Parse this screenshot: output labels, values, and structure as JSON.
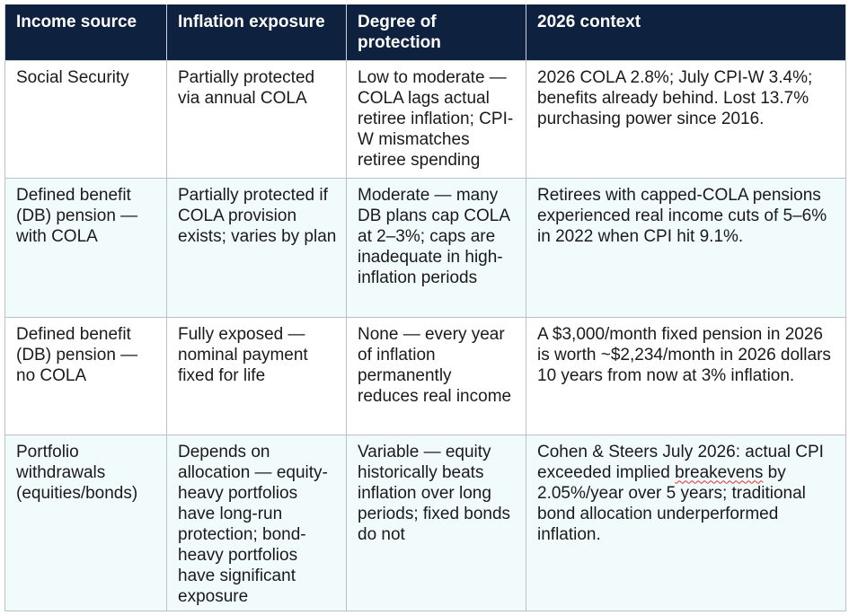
{
  "table": {
    "headers": [
      "Income source",
      "Inflation exposure",
      "Degree of protection",
      "2026 context"
    ],
    "rows": [
      {
        "source": "Social Security",
        "exposure": "Partially protected via annual COLA",
        "protection": "Low to moderate — COLA lags actual retiree inflation; CPI-W mismatches retiree spending",
        "context": "2026 COLA 2.8%; July CPI-W 3.4%; benefits already behind. Lost 13.7% purchasing power since 2016."
      },
      {
        "source": "Defined benefit (DB) pension — with COLA",
        "exposure": "Partially protected if COLA provision exists; varies by plan",
        "protection": "Moderate — many DB plans cap COLA at 2–3%; caps are inadequate in high-inflation periods",
        "context": "Retirees with capped-COLA pensions experienced real income cuts of 5–6% in 2022 when CPI hit 9.1%."
      },
      {
        "source": "Defined benefit (DB) pension — no COLA",
        "exposure": "Fully exposed — nominal payment fixed for life",
        "protection": "None — every year of inflation permanently reduces real income",
        "context": "A $3,000/month fixed pension in 2026 is worth ~$2,234/month in 2026 dollars 10 years from now at 3% inflation."
      },
      {
        "source": "Portfolio withdrawals (equities/bonds)",
        "exposure": "Depends on allocation — equity-heavy portfolios have long-run protection; bond-heavy portfolios have significant exposure",
        "protection": "Variable — equity historically beats inflation over long periods; fixed bonds do not",
        "context_parts": {
          "before": "Cohen & Steers July 2026: actual CPI exceeded implied ",
          "flagged": "breakevens",
          "after": " by 2.05%/year over 5 years; traditional bond allocation underperformed inflation."
        }
      }
    ]
  },
  "colors": {
    "header_bg": "#0e2240",
    "header_text": "#ffffff",
    "row_tint": "#f2fbfb",
    "border": "#b9c1c7",
    "spellcheck_underline": "#e0312b"
  }
}
